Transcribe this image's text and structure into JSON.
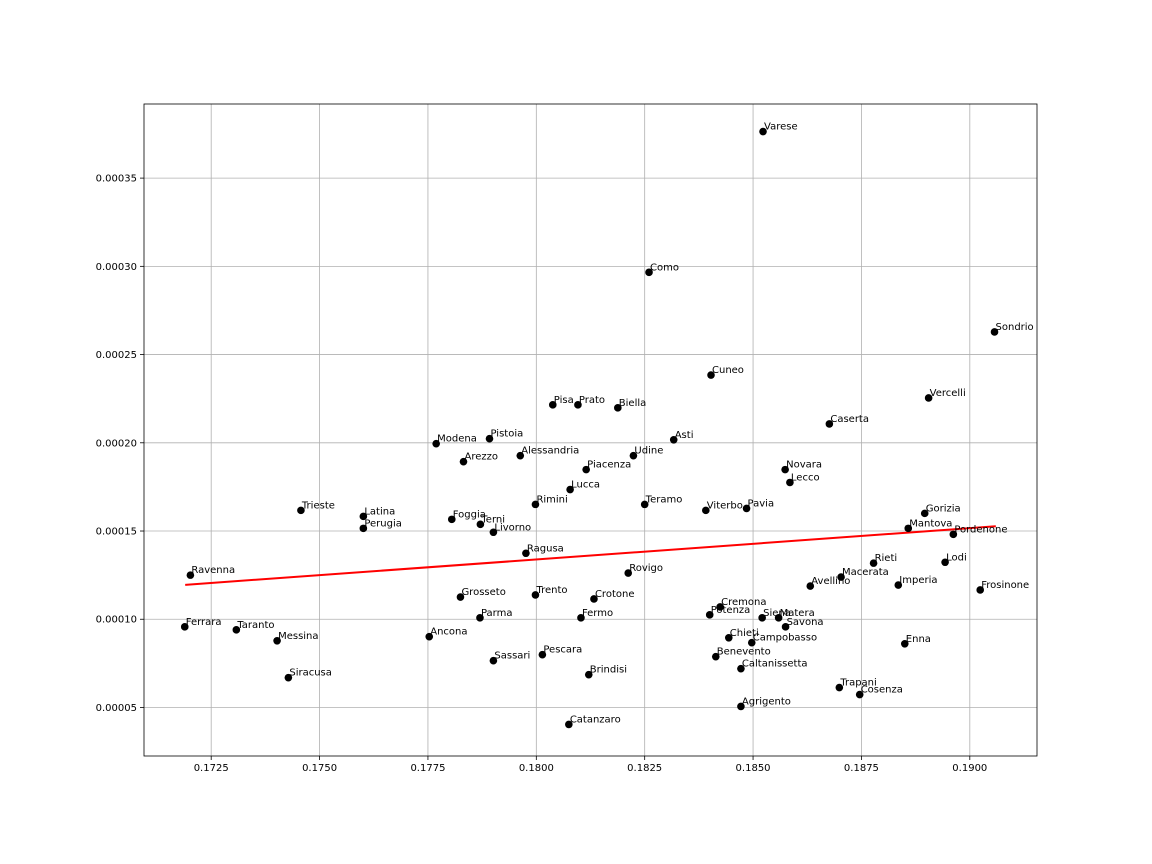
{
  "chart_data": {
    "type": "scatter",
    "title": "",
    "xlabel": "",
    "ylabel": "",
    "grid": true,
    "xlim": [
      0.17095,
      0.19155
    ],
    "ylim": [
      2.25e-05,
      0.000392
    ],
    "x_ticks": [
      0.1725,
      0.175,
      0.1775,
      0.18,
      0.1825,
      0.185,
      0.1875,
      0.19
    ],
    "x_tick_labels": [
      "0.1725",
      "0.1750",
      "0.1775",
      "0.1800",
      "0.1825",
      "0.1850",
      "0.1875",
      "0.1900"
    ],
    "y_ticks": [
      5e-05,
      0.0001,
      0.00015,
      0.0002,
      0.00025,
      0.0003,
      0.00035
    ],
    "y_tick_labels": [
      "0.00005",
      "0.00010",
      "0.00015",
      "0.00020",
      "0.00025",
      "0.00030",
      "0.00035"
    ],
    "point_color": "#000000",
    "fit_line": {
      "color": "#ff0000",
      "x": [
        0.1719,
        0.1906
      ],
      "y": [
        0.0001195,
        0.0001527
      ]
    },
    "points": [
      {
        "label": "Varese",
        "x": 0.18523,
        "y": 0.0003764
      },
      {
        "label": "Como",
        "x": 0.1826,
        "y": 0.0002966
      },
      {
        "label": "Sondrio",
        "x": 0.19057,
        "y": 0.0002628
      },
      {
        "label": "Cuneo",
        "x": 0.18403,
        "y": 0.0002384
      },
      {
        "label": "Vercelli",
        "x": 0.18905,
        "y": 0.0002254
      },
      {
        "label": "Pisa",
        "x": 0.18038,
        "y": 0.0002215
      },
      {
        "label": "Prato",
        "x": 0.18096,
        "y": 0.0002215
      },
      {
        "label": "Biella",
        "x": 0.18188,
        "y": 0.0002198
      },
      {
        "label": "Caserta",
        "x": 0.18676,
        "y": 0.0002107
      },
      {
        "label": "Asti",
        "x": 0.18317,
        "y": 0.0002017
      },
      {
        "label": "Pistoia",
        "x": 0.17892,
        "y": 0.0002023
      },
      {
        "label": "Modena",
        "x": 0.17769,
        "y": 0.0001995
      },
      {
        "label": "Alessandria",
        "x": 0.17963,
        "y": 0.0001927
      },
      {
        "label": "Udine",
        "x": 0.18224,
        "y": 0.0001927
      },
      {
        "label": "Arezzo",
        "x": 0.17832,
        "y": 0.0001893
      },
      {
        "label": "Piacenza",
        "x": 0.18115,
        "y": 0.0001848
      },
      {
        "label": "Novara",
        "x": 0.18574,
        "y": 0.0001848
      },
      {
        "label": "Lecco",
        "x": 0.18585,
        "y": 0.0001775
      },
      {
        "label": "Lucca",
        "x": 0.18078,
        "y": 0.0001735
      },
      {
        "label": "Rimini",
        "x": 0.17998,
        "y": 0.0001651
      },
      {
        "label": "Teramo",
        "x": 0.1825,
        "y": 0.0001651
      },
      {
        "label": "Viterbo",
        "x": 0.18391,
        "y": 0.0001617
      },
      {
        "label": "Pavia",
        "x": 0.18485,
        "y": 0.0001628
      },
      {
        "label": "Gorizia",
        "x": 0.18896,
        "y": 0.00016
      },
      {
        "label": "Trieste",
        "x": 0.17457,
        "y": 0.0001617
      },
      {
        "label": "Latina",
        "x": 0.17601,
        "y": 0.0001583
      },
      {
        "label": "Foggia",
        "x": 0.17805,
        "y": 0.0001566
      },
      {
        "label": "Terni",
        "x": 0.17871,
        "y": 0.0001538
      },
      {
        "label": "Perugia",
        "x": 0.17601,
        "y": 0.0001515
      },
      {
        "label": "Livorno",
        "x": 0.17901,
        "y": 0.0001493
      },
      {
        "label": "Mantova",
        "x": 0.18858,
        "y": 0.0001515
      },
      {
        "label": "Pordenone",
        "x": 0.18962,
        "y": 0.0001481
      },
      {
        "label": "Ragusa",
        "x": 0.17976,
        "y": 0.0001374
      },
      {
        "label": "Rieti",
        "x": 0.18778,
        "y": 0.0001318
      },
      {
        "label": "Lodi",
        "x": 0.18943,
        "y": 0.0001323
      },
      {
        "label": "Ravenna",
        "x": 0.17202,
        "y": 0.000125
      },
      {
        "label": "Rovigo",
        "x": 0.18212,
        "y": 0.0001262
      },
      {
        "label": "Macerata",
        "x": 0.18703,
        "y": 0.0001239
      },
      {
        "label": "Avellino",
        "x": 0.18632,
        "y": 0.0001188
      },
      {
        "label": "Imperia",
        "x": 0.18835,
        "y": 0.0001194
      },
      {
        "label": "Frosinone",
        "x": 0.19024,
        "y": 0.0001166
      },
      {
        "label": "Grosseto",
        "x": 0.17825,
        "y": 0.0001126
      },
      {
        "label": "Trento",
        "x": 0.17998,
        "y": 0.0001138
      },
      {
        "label": "Crotone",
        "x": 0.18133,
        "y": 0.0001115
      },
      {
        "label": "Cremona",
        "x": 0.18424,
        "y": 0.000107
      },
      {
        "label": "Parma",
        "x": 0.1787,
        "y": 0.0001008
      },
      {
        "label": "Fermo",
        "x": 0.18103,
        "y": 0.0001008
      },
      {
        "label": "Potenza",
        "x": 0.184,
        "y": 0.0001025
      },
      {
        "label": "Siena",
        "x": 0.18521,
        "y": 0.0001008
      },
      {
        "label": "Matera",
        "x": 0.18559,
        "y": 0.0001008
      },
      {
        "label": "Savona",
        "x": 0.18575,
        "y": 9.57e-05
      },
      {
        "label": "Ferrara",
        "x": 0.17189,
        "y": 9.57e-05
      },
      {
        "label": "Taranto",
        "x": 0.17308,
        "y": 9.4e-05
      },
      {
        "label": "Ancona",
        "x": 0.17753,
        "y": 9.01e-05
      },
      {
        "label": "Messina",
        "x": 0.17402,
        "y": 8.78e-05
      },
      {
        "label": "Chieti",
        "x": 0.18444,
        "y": 8.95e-05
      },
      {
        "label": "Campobasso",
        "x": 0.18497,
        "y": 8.67e-05
      },
      {
        "label": "Enna",
        "x": 0.1885,
        "y": 8.61e-05
      },
      {
        "label": "Benevento",
        "x": 0.18414,
        "y": 7.88e-05
      },
      {
        "label": "Pescara",
        "x": 0.18014,
        "y": 7.99e-05
      },
      {
        "label": "Sassari",
        "x": 0.17901,
        "y": 7.65e-05
      },
      {
        "label": "Caltanissetta",
        "x": 0.18472,
        "y": 7.2e-05
      },
      {
        "label": "Brindisi",
        "x": 0.18121,
        "y": 6.86e-05
      },
      {
        "label": "Siracusa",
        "x": 0.17428,
        "y": 6.69e-05
      },
      {
        "label": "Trapani",
        "x": 0.18699,
        "y": 6.13e-05
      },
      {
        "label": "Cosenza",
        "x": 0.18746,
        "y": 5.73e-05
      },
      {
        "label": "Agrigento",
        "x": 0.18472,
        "y": 5.06e-05
      },
      {
        "label": "Catanzaro",
        "x": 0.18075,
        "y": 4.04e-05
      }
    ]
  }
}
